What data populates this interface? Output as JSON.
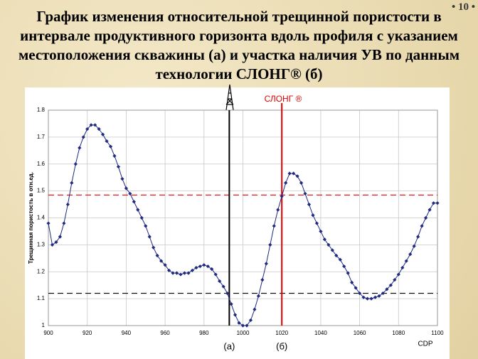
{
  "page_number": "10",
  "title": "График изменения относительной трещинной пористости в интервале продуктивного горизонта вдоль профиля с указанием местоположения скважины (а) и участка наличия УВ по данным технологии СЛОНГ® (б)",
  "chart_data": {
    "type": "line",
    "x_label": "CDP",
    "y_label": "Трещинная пористость в отн.ед.",
    "xlim": [
      900,
      1100
    ],
    "xticks": [
      900,
      920,
      940,
      960,
      980,
      1000,
      1020,
      1040,
      1060,
      1080,
      1100
    ],
    "ylim": [
      1,
      1.8
    ],
    "yticks": [
      1,
      1.1,
      1.2,
      1.3,
      1.4,
      1.5,
      1.6,
      1.7,
      1.8
    ],
    "grid": true,
    "x": [
      900,
      902,
      904,
      906,
      908,
      910,
      912,
      914,
      916,
      918,
      920,
      922,
      924,
      926,
      928,
      930,
      932,
      934,
      936,
      938,
      940,
      942,
      944,
      946,
      948,
      950,
      952,
      954,
      956,
      958,
      960,
      962,
      964,
      966,
      968,
      970,
      972,
      974,
      976,
      978,
      980,
      982,
      984,
      986,
      988,
      990,
      992,
      994,
      996,
      998,
      1000,
      1002,
      1004,
      1006,
      1008,
      1010,
      1012,
      1014,
      1016,
      1018,
      1020,
      1022,
      1024,
      1026,
      1028,
      1030,
      1032,
      1034,
      1036,
      1038,
      1040,
      1042,
      1044,
      1046,
      1048,
      1050,
      1052,
      1054,
      1056,
      1058,
      1060,
      1062,
      1064,
      1066,
      1068,
      1070,
      1072,
      1074,
      1076,
      1078,
      1080,
      1082,
      1084,
      1086,
      1088,
      1090,
      1092,
      1094,
      1096,
      1098,
      1100
    ],
    "series": [
      {
        "color": "#1f2a80",
        "values": [
          1.38,
          1.3,
          1.31,
          1.33,
          1.38,
          1.45,
          1.53,
          1.6,
          1.66,
          1.7,
          1.73,
          1.745,
          1.745,
          1.73,
          1.71,
          1.685,
          1.665,
          1.63,
          1.59,
          1.545,
          1.51,
          1.49,
          1.46,
          1.43,
          1.4,
          1.37,
          1.33,
          1.29,
          1.26,
          1.24,
          1.225,
          1.205,
          1.195,
          1.195,
          1.19,
          1.195,
          1.195,
          1.205,
          1.215,
          1.22,
          1.225,
          1.22,
          1.21,
          1.19,
          1.165,
          1.145,
          1.12,
          1.08,
          1.04,
          1.01,
          1.0,
          1.0,
          1.02,
          1.06,
          1.11,
          1.17,
          1.23,
          1.3,
          1.37,
          1.43,
          1.48,
          1.53,
          1.565,
          1.565,
          1.555,
          1.53,
          1.49,
          1.45,
          1.41,
          1.38,
          1.35,
          1.32,
          1.3,
          1.28,
          1.26,
          1.245,
          1.22,
          1.195,
          1.16,
          1.14,
          1.12,
          1.105,
          1.1,
          1.1,
          1.105,
          1.11,
          1.12,
          1.135,
          1.15,
          1.17,
          1.19,
          1.215,
          1.24,
          1.265,
          1.295,
          1.33,
          1.37,
          1.4,
          1.43,
          1.455,
          1.455
        ]
      }
    ],
    "vlines": [
      {
        "x": 993,
        "color": "#000000",
        "label": "(а)"
      },
      {
        "x": 1020,
        "color": "#e00000",
        "label": "(б)"
      }
    ],
    "hlines": [
      {
        "y": 1.485,
        "color": "#e00000"
      },
      {
        "y": 1.12,
        "color": "#000000"
      }
    ],
    "annotation": "СЛОНГ ®"
  }
}
